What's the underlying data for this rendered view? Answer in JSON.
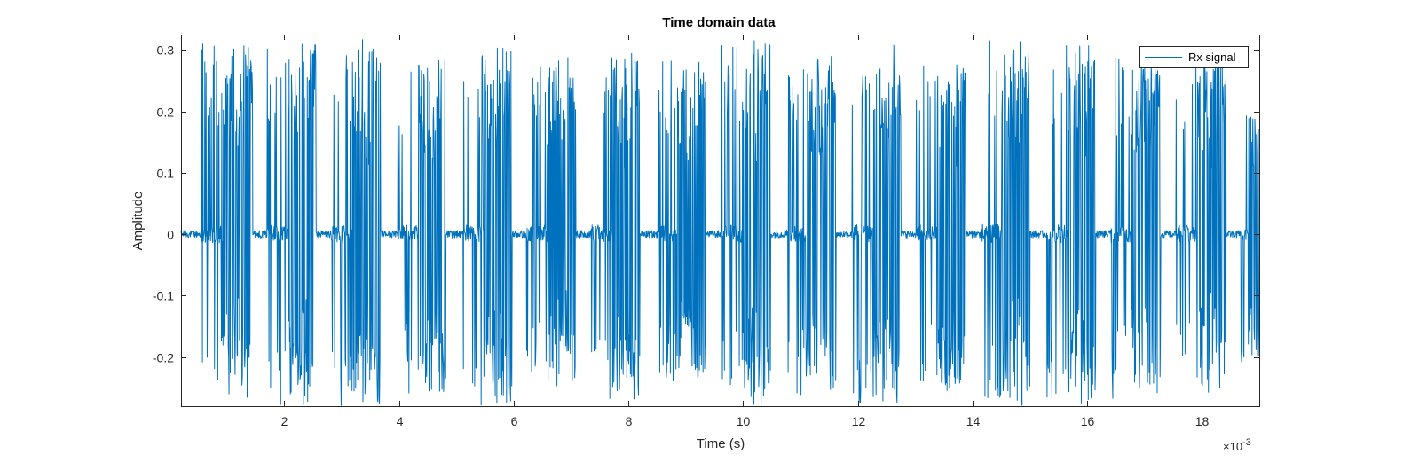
{
  "chart_data": {
    "type": "line",
    "title": "Time domain data",
    "xlabel": "Time (s)",
    "ylabel": "Amplitude",
    "x_exponent_label": "×10",
    "x_exponent_power": "-3",
    "xlim": [
      0.2,
      19.0
    ],
    "ylim": [
      -0.28,
      0.325
    ],
    "xticks": [
      2,
      4,
      6,
      8,
      10,
      12,
      14,
      16,
      18
    ],
    "xtick_labels": [
      "2",
      "4",
      "6",
      "8",
      "10",
      "12",
      "14",
      "16",
      "18"
    ],
    "yticks": [
      -0.2,
      -0.1,
      0,
      0.1,
      0.2,
      0.3
    ],
    "ytick_labels": [
      "-0.2",
      "-0.1",
      "0",
      "0.1",
      "0.2",
      "0.3"
    ],
    "grid": false,
    "legend": {
      "position": "top-right",
      "entries": [
        "Rx signal"
      ]
    },
    "series": [
      {
        "name": "Rx signal",
        "color": "#0072BD",
        "noise_amplitude": 0.006,
        "bursts": [
          {
            "start": 0.55,
            "end": 1.45,
            "peak": 0.32,
            "trough": -0.28
          },
          {
            "start": 1.7,
            "end": 2.55,
            "peak": 0.31,
            "trough": -0.28
          },
          {
            "start": 2.82,
            "end": 3.68,
            "peak": 0.32,
            "trough": -0.28
          },
          {
            "start": 3.98,
            "end": 4.82,
            "peak": 0.29,
            "trough": -0.26
          },
          {
            "start": 5.12,
            "end": 5.97,
            "peak": 0.31,
            "trough": -0.28
          },
          {
            "start": 6.22,
            "end": 7.08,
            "peak": 0.29,
            "trough": -0.26
          },
          {
            "start": 7.35,
            "end": 8.2,
            "peak": 0.31,
            "trough": -0.27
          },
          {
            "start": 8.5,
            "end": 9.35,
            "peak": 0.29,
            "trough": -0.24
          },
          {
            "start": 9.62,
            "end": 10.48,
            "peak": 0.32,
            "trough": -0.28
          },
          {
            "start": 10.75,
            "end": 11.62,
            "peak": 0.29,
            "trough": -0.27
          },
          {
            "start": 11.9,
            "end": 12.75,
            "peak": 0.31,
            "trough": -0.28
          },
          {
            "start": 13.02,
            "end": 13.88,
            "peak": 0.3,
            "trough": -0.26
          },
          {
            "start": 14.15,
            "end": 15.0,
            "peak": 0.32,
            "trough": -0.28
          },
          {
            "start": 15.3,
            "end": 16.15,
            "peak": 0.31,
            "trough": -0.28
          },
          {
            "start": 16.4,
            "end": 17.28,
            "peak": 0.29,
            "trough": -0.27
          },
          {
            "start": 17.55,
            "end": 18.42,
            "peak": 0.29,
            "trough": -0.26
          },
          {
            "start": 18.68,
            "end": 19.0,
            "peak": 0.21,
            "trough": -0.22
          }
        ]
      }
    ]
  }
}
